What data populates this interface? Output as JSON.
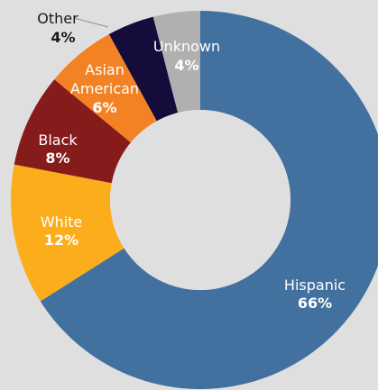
{
  "chart_data": {
    "type": "pie",
    "donut": true,
    "title": "",
    "unit": "%",
    "slices": [
      {
        "name": "Hispanic",
        "value": 66,
        "label": "66%",
        "color": "#43719f"
      },
      {
        "name": "White",
        "value": 12,
        "label": "12%",
        "color": "#fbad1c"
      },
      {
        "name": "Black",
        "value": 8,
        "label": "8%",
        "color": "#861b1b"
      },
      {
        "name": "Asian American",
        "value": 6,
        "label": "6%",
        "color": "#f38225"
      },
      {
        "name": "Other",
        "value": 4,
        "label": "4%",
        "color": "#150c3c"
      },
      {
        "name": "Unknown",
        "value": 4,
        "label": "4%",
        "color": "#b0b0b0"
      }
    ],
    "hole_color": "#e0dfe0",
    "background": "#e0dfe0"
  }
}
